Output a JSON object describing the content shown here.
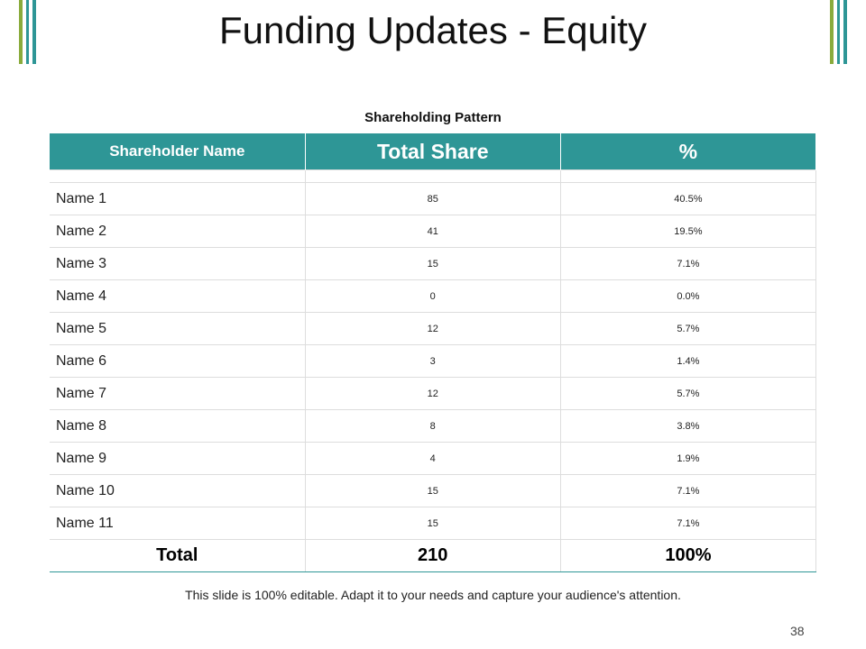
{
  "header": {
    "title": "Funding Updates - Equity"
  },
  "table": {
    "caption": "Shareholding Pattern",
    "columns": [
      "Shareholder  Name",
      "Total Share",
      "%"
    ],
    "rows": [
      [
        "Name 1",
        85,
        "40.5%"
      ],
      [
        "Name 2",
        41,
        "19.5%"
      ],
      [
        "Name 3",
        15,
        "7.1%"
      ],
      [
        "Name 4",
        0,
        "0.0%"
      ],
      [
        "Name 5",
        12,
        "5.7%"
      ],
      [
        "Name 6",
        3,
        "1.4%"
      ],
      [
        "Name 7",
        12,
        "5.7%"
      ],
      [
        "Name 8",
        8,
        "3.8%"
      ],
      [
        "Name 9",
        4,
        "1.9%"
      ],
      [
        "Name 10",
        15,
        "7.1%"
      ],
      [
        "Name 11",
        15,
        "7.1%"
      ]
    ],
    "total": [
      "Total",
      210,
      "100%"
    ]
  },
  "footer": {
    "note": "This slide is 100% editable. Adapt it to your needs and capture your audience's attention.",
    "page": "38"
  }
}
